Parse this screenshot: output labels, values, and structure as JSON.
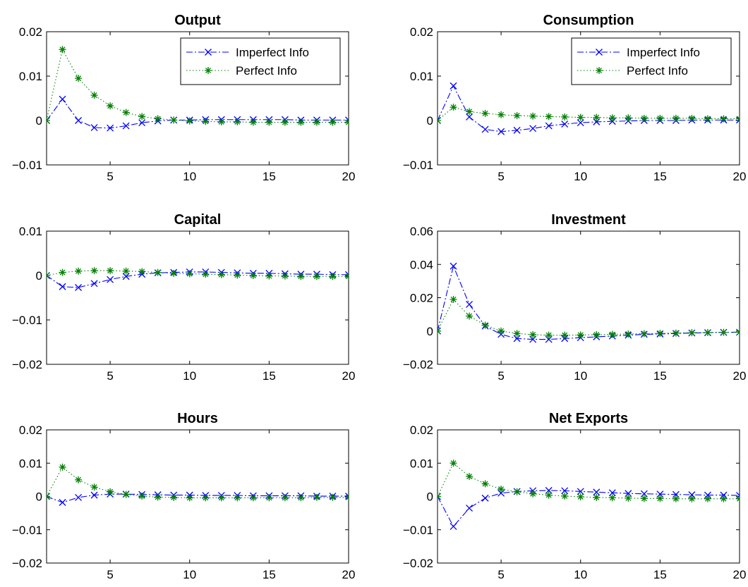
{
  "chart_data": [
    {
      "type": "line",
      "title": "Output",
      "x": [
        1,
        2,
        3,
        4,
        5,
        6,
        7,
        8,
        9,
        10,
        11,
        12,
        13,
        14,
        15,
        16,
        17,
        18,
        19,
        20
      ],
      "xlim": [
        1,
        20
      ],
      "xticks": [
        5,
        10,
        15,
        20
      ],
      "ylim": [
        -0.01,
        0.02
      ],
      "yticks": [
        -0.01,
        0,
        0.01,
        0.02
      ],
      "ytick_labels": [
        "−0.01",
        "0",
        "0.01",
        "0.02"
      ],
      "legend": {
        "show": true,
        "placement": "top-right"
      },
      "series": [
        {
          "name": "Imperfect Info",
          "marker": "x",
          "line": "dashdot",
          "color": "#0000ff",
          "values": [
            0,
            0.0048,
            0,
            -0.0016,
            -0.0017,
            -0.0012,
            -0.0005,
            -0.0001,
            0.0001,
            0.0001,
            0.0002,
            0.0002,
            0.0002,
            0.0002,
            0.0002,
            0.0002,
            0.0001,
            0.0001,
            0.0001,
            0.0001
          ]
        },
        {
          "name": "Perfect Info",
          "marker": "*",
          "line": "dotted",
          "color": "#008000",
          "values": [
            0,
            0.016,
            0.0095,
            0.0057,
            0.0033,
            0.0018,
            0.0009,
            0.0004,
            0.0001,
            -0.0001,
            -0.0002,
            -0.0003,
            -0.0003,
            -0.0004,
            -0.0004,
            -0.0004,
            -0.0004,
            -0.0004,
            -0.0004,
            -0.0004
          ]
        }
      ]
    },
    {
      "type": "line",
      "title": "Consumption",
      "x": [
        1,
        2,
        3,
        4,
        5,
        6,
        7,
        8,
        9,
        10,
        11,
        12,
        13,
        14,
        15,
        16,
        17,
        18,
        19,
        20
      ],
      "xlim": [
        1,
        20
      ],
      "xticks": [
        5,
        10,
        15,
        20
      ],
      "ylim": [
        -0.01,
        0.02
      ],
      "yticks": [
        -0.01,
        0,
        0.01,
        0.02
      ],
      "ytick_labels": [
        "−0.01",
        "0",
        "0.01",
        "0.02"
      ],
      "legend": {
        "show": true,
        "placement": "top-right"
      },
      "series": [
        {
          "name": "Imperfect Info",
          "marker": "x",
          "line": "dashdot",
          "color": "#0000ff",
          "values": [
            0,
            0.0078,
            0.0008,
            -0.002,
            -0.0025,
            -0.0022,
            -0.0018,
            -0.0012,
            -0.0008,
            -0.0005,
            -0.0003,
            -0.0002,
            -0.0001,
            0,
            0,
            0,
            0.0001,
            0.0001,
            0.0001,
            0.0001
          ]
        },
        {
          "name": "Perfect Info",
          "marker": "*",
          "line": "dotted",
          "color": "#008000",
          "values": [
            0,
            0.003,
            0.002,
            0.0016,
            0.0013,
            0.0011,
            0.001,
            0.0009,
            0.0008,
            0.0007,
            0.0007,
            0.0006,
            0.0006,
            0.0005,
            0.0005,
            0.0005,
            0.0005,
            0.0004,
            0.0004,
            0.0004
          ]
        }
      ]
    },
    {
      "type": "line",
      "title": "Capital",
      "x": [
        1,
        2,
        3,
        4,
        5,
        6,
        7,
        8,
        9,
        10,
        11,
        12,
        13,
        14,
        15,
        16,
        17,
        18,
        19,
        20
      ],
      "xlim": [
        1,
        20
      ],
      "xticks": [
        5,
        10,
        15,
        20
      ],
      "ylim": [
        -0.02,
        0.01
      ],
      "yticks": [
        -0.02,
        -0.01,
        0,
        0.01
      ],
      "ytick_labels": [
        "−0.02",
        "−0.01",
        "0",
        "0.01"
      ],
      "legend": {
        "show": false
      },
      "series": [
        {
          "name": "Imperfect Info",
          "marker": "x",
          "line": "dashdot",
          "color": "#0000ff",
          "values": [
            0,
            -0.0025,
            -0.0027,
            -0.0018,
            -0.0009,
            -0.0002,
            0.0003,
            0.0006,
            0.0007,
            0.0008,
            0.0008,
            0.0007,
            0.0006,
            0.0005,
            0.0005,
            0.0004,
            0.0003,
            0.0003,
            0.0002,
            0.0002
          ]
        },
        {
          "name": "Perfect Info",
          "marker": "*",
          "line": "dotted",
          "color": "#008000",
          "values": [
            0,
            0.0007,
            0.001,
            0.0011,
            0.0011,
            0.001,
            0.0009,
            0.0007,
            0.0005,
            0.0004,
            0.0003,
            0.0002,
            0.0001,
            0,
            -0.0001,
            -0.0001,
            -0.0002,
            -0.0002,
            -0.0002,
            -0.0002
          ]
        }
      ]
    },
    {
      "type": "line",
      "title": "Investment",
      "x": [
        1,
        2,
        3,
        4,
        5,
        6,
        7,
        8,
        9,
        10,
        11,
        12,
        13,
        14,
        15,
        16,
        17,
        18,
        19,
        20
      ],
      "xlim": [
        1,
        20
      ],
      "xticks": [
        5,
        10,
        15,
        20
      ],
      "ylim": [
        -0.02,
        0.06
      ],
      "yticks": [
        -0.02,
        0,
        0.02,
        0.04,
        0.06
      ],
      "ytick_labels": [
        "−0.02",
        "0",
        "0.02",
        "0.04",
        "0.06"
      ],
      "legend": {
        "show": false
      },
      "series": [
        {
          "name": "Imperfect Info",
          "marker": "x",
          "line": "dashdot",
          "color": "#0000ff",
          "values": [
            0,
            0.039,
            0.016,
            0.003,
            -0.002,
            -0.0045,
            -0.005,
            -0.005,
            -0.0045,
            -0.004,
            -0.0035,
            -0.003,
            -0.0025,
            -0.002,
            -0.0018,
            -0.0015,
            -0.0012,
            -0.001,
            -0.0008,
            -0.0007
          ]
        },
        {
          "name": "Perfect Info",
          "marker": "*",
          "line": "dotted",
          "color": "#008000",
          "values": [
            0,
            0.019,
            0.009,
            0.0035,
            0,
            -0.0015,
            -0.0022,
            -0.0025,
            -0.0025,
            -0.0024,
            -0.0022,
            -0.002,
            -0.0018,
            -0.0016,
            -0.0014,
            -0.0012,
            -0.001,
            -0.0009,
            -0.0008,
            -0.0007
          ]
        }
      ]
    },
    {
      "type": "line",
      "title": "Hours",
      "x": [
        1,
        2,
        3,
        4,
        5,
        6,
        7,
        8,
        9,
        10,
        11,
        12,
        13,
        14,
        15,
        16,
        17,
        18,
        19,
        20
      ],
      "xlim": [
        1,
        20
      ],
      "xticks": [
        5,
        10,
        15,
        20
      ],
      "ylim": [
        -0.02,
        0.02
      ],
      "yticks": [
        -0.02,
        -0.01,
        0,
        0.01,
        0.02
      ],
      "ytick_labels": [
        "−0.02",
        "−0.01",
        "0",
        "0.01",
        "0.02"
      ],
      "legend": {
        "show": false
      },
      "series": [
        {
          "name": "Imperfect Info",
          "marker": "x",
          "line": "dashdot",
          "color": "#0000ff",
          "values": [
            0,
            -0.0018,
            -0.0003,
            0.0004,
            0.0007,
            0.0007,
            0.0006,
            0.0005,
            0.0004,
            0.0004,
            0.0003,
            0.0003,
            0.0003,
            0.0002,
            0.0002,
            0.0002,
            0.0002,
            0.0001,
            0.0001,
            0.0001
          ]
        },
        {
          "name": "Perfect Info",
          "marker": "*",
          "line": "dotted",
          "color": "#008000",
          "values": [
            0,
            0.0088,
            0.005,
            0.0028,
            0.0014,
            0.0006,
            0.0001,
            -0.0002,
            -0.0003,
            -0.0004,
            -0.0004,
            -0.0004,
            -0.0004,
            -0.0004,
            -0.0004,
            -0.0004,
            -0.0004,
            -0.0003,
            -0.0003,
            -0.0003
          ]
        }
      ]
    },
    {
      "type": "line",
      "title": "Net Exports",
      "x": [
        1,
        2,
        3,
        4,
        5,
        6,
        7,
        8,
        9,
        10,
        11,
        12,
        13,
        14,
        15,
        16,
        17,
        18,
        19,
        20
      ],
      "xlim": [
        1,
        20
      ],
      "xticks": [
        5,
        10,
        15,
        20
      ],
      "ylim": [
        -0.02,
        0.02
      ],
      "yticks": [
        -0.02,
        -0.01,
        0,
        0.01,
        0.02
      ],
      "ytick_labels": [
        "−0.02",
        "−0.01",
        "0",
        "0.01",
        "0.02"
      ],
      "legend": {
        "show": false
      },
      "series": [
        {
          "name": "Imperfect Info",
          "marker": "x",
          "line": "dashdot",
          "color": "#0000ff",
          "values": [
            0,
            -0.009,
            -0.0035,
            -0.0005,
            0.001,
            0.0015,
            0.0017,
            0.0018,
            0.0017,
            0.0015,
            0.0013,
            0.0011,
            0.0009,
            0.0008,
            0.0007,
            0.0006,
            0.0005,
            0.0004,
            0.0004,
            0.0003
          ]
        },
        {
          "name": "Perfect Info",
          "marker": "*",
          "line": "dotted",
          "color": "#008000",
          "values": [
            0,
            0.01,
            0.006,
            0.0038,
            0.0022,
            0.0014,
            0.0008,
            0.0004,
            0.0001,
            -0.0001,
            -0.0003,
            -0.0004,
            -0.0005,
            -0.0006,
            -0.0006,
            -0.0007,
            -0.0007,
            -0.0007,
            -0.0007,
            -0.0007
          ]
        }
      ]
    }
  ]
}
